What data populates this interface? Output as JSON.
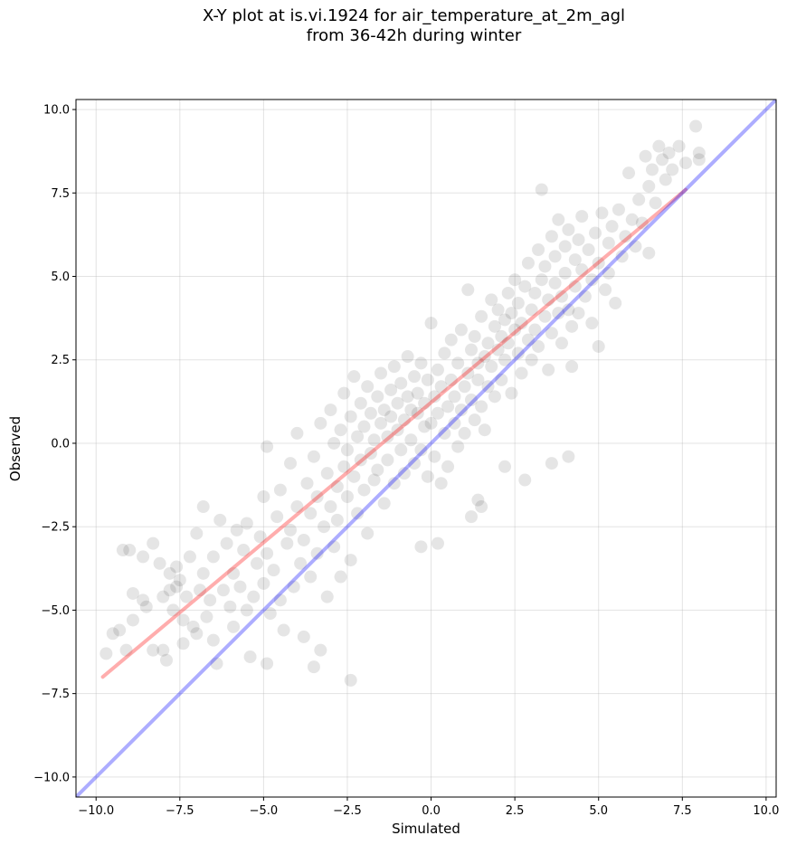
{
  "chart_data": {
    "type": "scatter",
    "title_lines": [
      "X-Y plot at is.vi.1924 for air_temperature_at_2m_agl",
      "from 36-42h during winter"
    ],
    "xlabel": "Simulated",
    "ylabel": "Observed",
    "xlim": [
      -10.6,
      10.3
    ],
    "ylim": [
      -10.6,
      10.3
    ],
    "xticks": [
      -10.0,
      -7.5,
      -5.0,
      -2.5,
      0.0,
      2.5,
      5.0,
      7.5,
      10.0
    ],
    "yticks": [
      -10.0,
      -7.5,
      -5.0,
      -2.5,
      0.0,
      2.5,
      5.0,
      7.5,
      10.0
    ],
    "tick_labels": [
      "−10.0",
      "−7.5",
      "−5.0",
      "−2.5",
      "0.0",
      "2.5",
      "5.0",
      "7.5",
      "10.0"
    ],
    "grid": true,
    "colors": {
      "points": "#000000",
      "regression_line": "#ff0000",
      "identity_line": "#0000ff",
      "grid": "#b0b0b0"
    },
    "lines": [
      {
        "type": "regression",
        "x": [
          -9.8,
          7.6
        ],
        "y": [
          -7.0,
          7.6
        ]
      },
      {
        "type": "identity",
        "x": [
          -10.6,
          10.3
        ],
        "y": [
          -10.6,
          10.3
        ]
      }
    ],
    "points": [
      [
        -9.7,
        -6.3
      ],
      [
        -9.5,
        -5.7
      ],
      [
        -9.3,
        -5.6
      ],
      [
        -9.2,
        -3.2
      ],
      [
        -9.0,
        -3.2
      ],
      [
        -9.1,
        -6.2
      ],
      [
        -8.9,
        -5.3
      ],
      [
        -8.9,
        -4.5
      ],
      [
        -8.6,
        -3.4
      ],
      [
        -8.6,
        -4.7
      ],
      [
        -8.5,
        -4.9
      ],
      [
        -8.3,
        -3.0
      ],
      [
        -8.3,
        -6.2
      ],
      [
        -8.1,
        -3.6
      ],
      [
        -8.0,
        -4.6
      ],
      [
        -8.0,
        -6.2
      ],
      [
        -7.9,
        -6.5
      ],
      [
        -7.8,
        -4.4
      ],
      [
        -7.8,
        -3.9
      ],
      [
        -7.7,
        -5.0
      ],
      [
        -7.6,
        -4.3
      ],
      [
        -7.6,
        -3.7
      ],
      [
        -7.5,
        -4.1
      ],
      [
        -7.4,
        -5.3
      ],
      [
        -7.4,
        -6.0
      ],
      [
        -7.3,
        -4.6
      ],
      [
        -7.2,
        -3.4
      ],
      [
        -7.1,
        -5.5
      ],
      [
        -7.0,
        -5.7
      ],
      [
        -7.0,
        -2.7
      ],
      [
        -6.9,
        -4.4
      ],
      [
        -6.8,
        -3.9
      ],
      [
        -6.8,
        -1.9
      ],
      [
        -6.7,
        -5.2
      ],
      [
        -6.6,
        -4.7
      ],
      [
        -6.5,
        -5.9
      ],
      [
        -6.5,
        -3.4
      ],
      [
        -6.4,
        -6.6
      ],
      [
        -6.3,
        -2.3
      ],
      [
        -6.2,
        -4.4
      ],
      [
        -6.1,
        -3.0
      ],
      [
        -6.0,
        -4.9
      ],
      [
        -5.9,
        -5.5
      ],
      [
        -5.9,
        -3.9
      ],
      [
        -5.8,
        -2.6
      ],
      [
        -5.7,
        -4.3
      ],
      [
        -5.6,
        -3.2
      ],
      [
        -5.5,
        -5.0
      ],
      [
        -5.5,
        -2.4
      ],
      [
        -5.4,
        -6.4
      ],
      [
        -5.3,
        -4.6
      ],
      [
        -5.2,
        -3.6
      ],
      [
        -5.1,
        -2.8
      ],
      [
        -5.0,
        -4.2
      ],
      [
        -5.0,
        -1.6
      ],
      [
        -4.9,
        -3.3
      ],
      [
        -4.9,
        -0.1
      ],
      [
        -4.8,
        -5.1
      ],
      [
        -4.7,
        -3.8
      ],
      [
        -4.6,
        -2.2
      ],
      [
        -4.5,
        -4.7
      ],
      [
        -4.5,
        -1.4
      ],
      [
        -4.4,
        -5.6
      ],
      [
        -4.3,
        -3.0
      ],
      [
        -4.2,
        -2.6
      ],
      [
        -4.2,
        -0.6
      ],
      [
        -4.1,
        -4.3
      ],
      [
        -4.0,
        -1.9
      ],
      [
        -4.0,
        0.3
      ],
      [
        -3.9,
        -3.6
      ],
      [
        -3.8,
        -5.8
      ],
      [
        -3.8,
        -2.9
      ],
      [
        -3.7,
        -1.2
      ],
      [
        -3.6,
        -4.0
      ],
      [
        -3.6,
        -2.1
      ],
      [
        -3.5,
        -0.4
      ],
      [
        -3.4,
        -3.3
      ],
      [
        -3.4,
        -1.6
      ],
      [
        -3.3,
        -6.2
      ],
      [
        -3.3,
        0.6
      ],
      [
        -3.2,
        -2.5
      ],
      [
        -3.1,
        -4.6
      ],
      [
        -3.1,
        -0.9
      ],
      [
        -3.0,
        -1.9
      ],
      [
        -3.0,
        1.0
      ],
      [
        -2.9,
        -3.1
      ],
      [
        -2.9,
        0.0
      ],
      [
        -2.8,
        -1.3
      ],
      [
        -2.8,
        -2.3
      ],
      [
        -2.7,
        0.4
      ],
      [
        -2.7,
        -4.0
      ],
      [
        -2.6,
        -0.7
      ],
      [
        -2.6,
        1.5
      ],
      [
        -2.5,
        -1.6
      ],
      [
        -2.5,
        -0.2
      ],
      [
        -2.4,
        -3.5
      ],
      [
        -2.4,
        0.8
      ],
      [
        -2.3,
        -1.0
      ],
      [
        -2.3,
        2.0
      ],
      [
        -2.2,
        -2.1
      ],
      [
        -2.2,
        0.2
      ],
      [
        -2.1,
        -0.5
      ],
      [
        -2.1,
        1.2
      ],
      [
        -2.0,
        -1.4
      ],
      [
        -2.0,
        0.5
      ],
      [
        -1.9,
        -2.7
      ],
      [
        -1.9,
        1.7
      ],
      [
        -1.8,
        -0.3
      ],
      [
        -1.8,
        0.9
      ],
      [
        -1.7,
        -1.1
      ],
      [
        -1.7,
        0.1
      ],
      [
        -1.6,
        1.4
      ],
      [
        -1.6,
        -0.8
      ],
      [
        -1.5,
        2.1
      ],
      [
        -1.5,
        0.6
      ],
      [
        -1.4,
        -1.8
      ],
      [
        -1.4,
        1.0
      ],
      [
        -1.3,
        0.2
      ],
      [
        -1.3,
        -0.5
      ],
      [
        -1.2,
        1.6
      ],
      [
        -1.2,
        0.8
      ],
      [
        -1.1,
        -1.2
      ],
      [
        -1.1,
        2.3
      ],
      [
        -1.0,
        0.4
      ],
      [
        -1.0,
        1.2
      ],
      [
        -0.9,
        -0.2
      ],
      [
        -0.9,
        1.8
      ],
      [
        -0.8,
        0.7
      ],
      [
        -0.8,
        -0.9
      ],
      [
        -0.7,
        1.4
      ],
      [
        -0.7,
        2.6
      ],
      [
        -0.6,
        0.1
      ],
      [
        -0.6,
        1.0
      ],
      [
        -0.5,
        -0.6
      ],
      [
        -0.5,
        2.0
      ],
      [
        -0.4,
        0.9
      ],
      [
        -0.4,
        1.5
      ],
      [
        -0.3,
        -0.2
      ],
      [
        -0.3,
        2.4
      ],
      [
        -0.2,
        0.5
      ],
      [
        -0.2,
        1.2
      ],
      [
        -0.1,
        -1.0
      ],
      [
        -0.1,
        1.9
      ],
      [
        0.0,
        0.6
      ],
      [
        0.0,
        3.6
      ],
      [
        0.1,
        1.4
      ],
      [
        0.1,
        -0.4
      ],
      [
        0.2,
        2.2
      ],
      [
        0.2,
        0.9
      ],
      [
        0.3,
        1.7
      ],
      [
        0.3,
        -1.2
      ],
      [
        0.4,
        0.3
      ],
      [
        0.4,
        2.7
      ],
      [
        0.5,
        1.1
      ],
      [
        0.5,
        -0.7
      ],
      [
        0.6,
        1.9
      ],
      [
        0.6,
        3.1
      ],
      [
        0.7,
        0.6
      ],
      [
        0.7,
        1.4
      ],
      [
        0.8,
        -0.1
      ],
      [
        0.8,
        2.4
      ],
      [
        0.9,
        1.0
      ],
      [
        0.9,
        3.4
      ],
      [
        1.0,
        1.7
      ],
      [
        1.0,
        0.3
      ],
      [
        1.1,
        2.1
      ],
      [
        1.1,
        4.6
      ],
      [
        1.2,
        1.3
      ],
      [
        1.2,
        2.8
      ],
      [
        1.3,
        0.7
      ],
      [
        1.3,
        3.2
      ],
      [
        1.4,
        1.9
      ],
      [
        1.4,
        2.4
      ],
      [
        1.5,
        1.1
      ],
      [
        1.5,
        3.8
      ],
      [
        1.6,
        2.6
      ],
      [
        1.6,
        0.4
      ],
      [
        1.7,
        3.0
      ],
      [
        1.7,
        1.7
      ],
      [
        1.8,
        2.3
      ],
      [
        1.8,
        4.3
      ],
      [
        1.9,
        3.5
      ],
      [
        1.9,
        1.4
      ],
      [
        2.0,
        2.8
      ],
      [
        2.0,
        4.0
      ],
      [
        2.1,
        3.2
      ],
      [
        2.1,
        1.9
      ],
      [
        2.2,
        3.7
      ],
      [
        2.2,
        2.5
      ],
      [
        2.3,
        4.5
      ],
      [
        2.3,
        3.0
      ],
      [
        2.4,
        3.9
      ],
      [
        2.4,
        1.5
      ],
      [
        2.5,
        3.4
      ],
      [
        2.5,
        4.9
      ],
      [
        2.6,
        2.7
      ],
      [
        2.6,
        4.2
      ],
      [
        2.7,
        3.6
      ],
      [
        2.7,
        2.1
      ],
      [
        2.8,
        4.7
      ],
      [
        2.8,
        -1.1
      ],
      [
        2.9,
        3.1
      ],
      [
        2.9,
        5.4
      ],
      [
        3.0,
        4.0
      ],
      [
        3.0,
        2.5
      ],
      [
        3.1,
        4.5
      ],
      [
        3.1,
        3.4
      ],
      [
        3.2,
        5.8
      ],
      [
        3.2,
        2.9
      ],
      [
        3.3,
        4.9
      ],
      [
        3.3,
        7.6
      ],
      [
        3.4,
        3.8
      ],
      [
        3.4,
        5.3
      ],
      [
        3.5,
        4.3
      ],
      [
        3.5,
        2.2
      ],
      [
        3.6,
        6.2
      ],
      [
        3.6,
        3.3
      ],
      [
        3.7,
        4.8
      ],
      [
        3.7,
        5.6
      ],
      [
        3.8,
        3.9
      ],
      [
        3.8,
        6.7
      ],
      [
        3.9,
        4.4
      ],
      [
        3.9,
        3.0
      ],
      [
        4.0,
        5.1
      ],
      [
        4.0,
        5.9
      ],
      [
        4.1,
        4.0
      ],
      [
        4.1,
        6.4
      ],
      [
        4.2,
        3.5
      ],
      [
        4.2,
        2.3
      ],
      [
        4.3,
        5.5
      ],
      [
        4.3,
        4.7
      ],
      [
        4.4,
        6.1
      ],
      [
        4.4,
        3.9
      ],
      [
        4.5,
        5.2
      ],
      [
        4.5,
        6.8
      ],
      [
        4.6,
        4.4
      ],
      [
        4.7,
        5.8
      ],
      [
        4.8,
        4.9
      ],
      [
        4.8,
        3.6
      ],
      [
        4.9,
        6.3
      ],
      [
        5.0,
        5.4
      ],
      [
        5.0,
        2.9
      ],
      [
        5.1,
        6.9
      ],
      [
        5.2,
        4.6
      ],
      [
        5.3,
        6.0
      ],
      [
        5.3,
        5.1
      ],
      [
        5.4,
        6.5
      ],
      [
        5.5,
        4.2
      ],
      [
        5.6,
        7.0
      ],
      [
        5.7,
        5.6
      ],
      [
        5.8,
        6.2
      ],
      [
        5.9,
        8.1
      ],
      [
        6.0,
        6.7
      ],
      [
        6.1,
        5.9
      ],
      [
        6.2,
        7.3
      ],
      [
        6.3,
        6.6
      ],
      [
        6.4,
        8.6
      ],
      [
        6.5,
        7.7
      ],
      [
        6.5,
        5.7
      ],
      [
        6.6,
        8.2
      ],
      [
        6.7,
        7.2
      ],
      [
        6.8,
        8.9
      ],
      [
        6.9,
        8.5
      ],
      [
        7.0,
        7.9
      ],
      [
        7.1,
        8.7
      ],
      [
        7.2,
        8.2
      ],
      [
        7.4,
        8.9
      ],
      [
        7.6,
        8.4
      ],
      [
        7.9,
        9.5
      ],
      [
        8.0,
        8.7
      ],
      [
        8.0,
        8.5
      ],
      [
        -3.5,
        -6.7
      ],
      [
        -2.4,
        -7.1
      ],
      [
        -4.9,
        -6.6
      ],
      [
        0.2,
        -3.0
      ],
      [
        -0.3,
        -3.1
      ],
      [
        1.2,
        -2.2
      ],
      [
        1.4,
        -1.7
      ],
      [
        1.5,
        -1.9
      ],
      [
        2.2,
        -0.7
      ],
      [
        3.6,
        -0.6
      ],
      [
        4.1,
        -0.4
      ]
    ]
  }
}
